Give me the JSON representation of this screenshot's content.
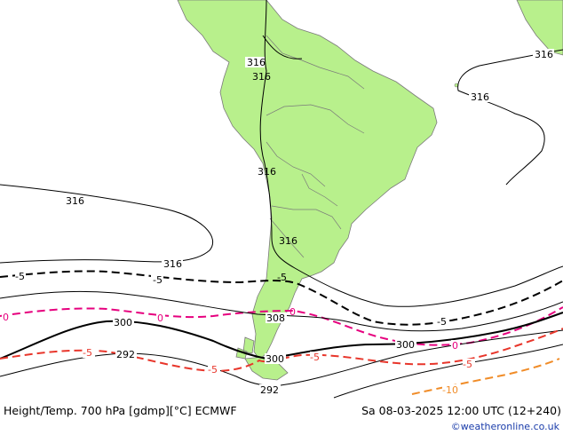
{
  "colors": {
    "land": "#b8f08c",
    "sea": "#ffffff",
    "border": "#7a7a7a",
    "contour_height": "#000000",
    "temp_zero": "#e6007e",
    "temp_minus5": "#e8362b",
    "temp_minus10": "#f08c28",
    "credit": "#1a3caa"
  },
  "labels": {
    "h316_a": "316",
    "h316_b": "316",
    "h316_c": "316",
    "h316_d": "316",
    "h316_e": "316",
    "h316_f": "316",
    "h316_g": "316",
    "h316_h": "316",
    "h308": "308",
    "h300_a": "300",
    "h300_b": "300",
    "h300_c": "300",
    "h292_a": "292",
    "h292_b": "292",
    "t5_a": "-5",
    "t5_b": "-5",
    "t5_c": "-5",
    "t5_d": "-5",
    "t0_a": "0",
    "t0_b": "0",
    "t0_c": "0",
    "t0_d": "0",
    "tm5_a": "-5",
    "tm5_b": "-5",
    "tm5_c": "-5",
    "tm5_d": "-5",
    "tm10": "-10"
  },
  "footer": {
    "left": "Height/Temp. 700 hPa [gdmp][°C] ECMWF",
    "right": "Sa 08-03-2025 12:00 UTC (12+240)",
    "credit": "©weatheronline.co.uk"
  }
}
